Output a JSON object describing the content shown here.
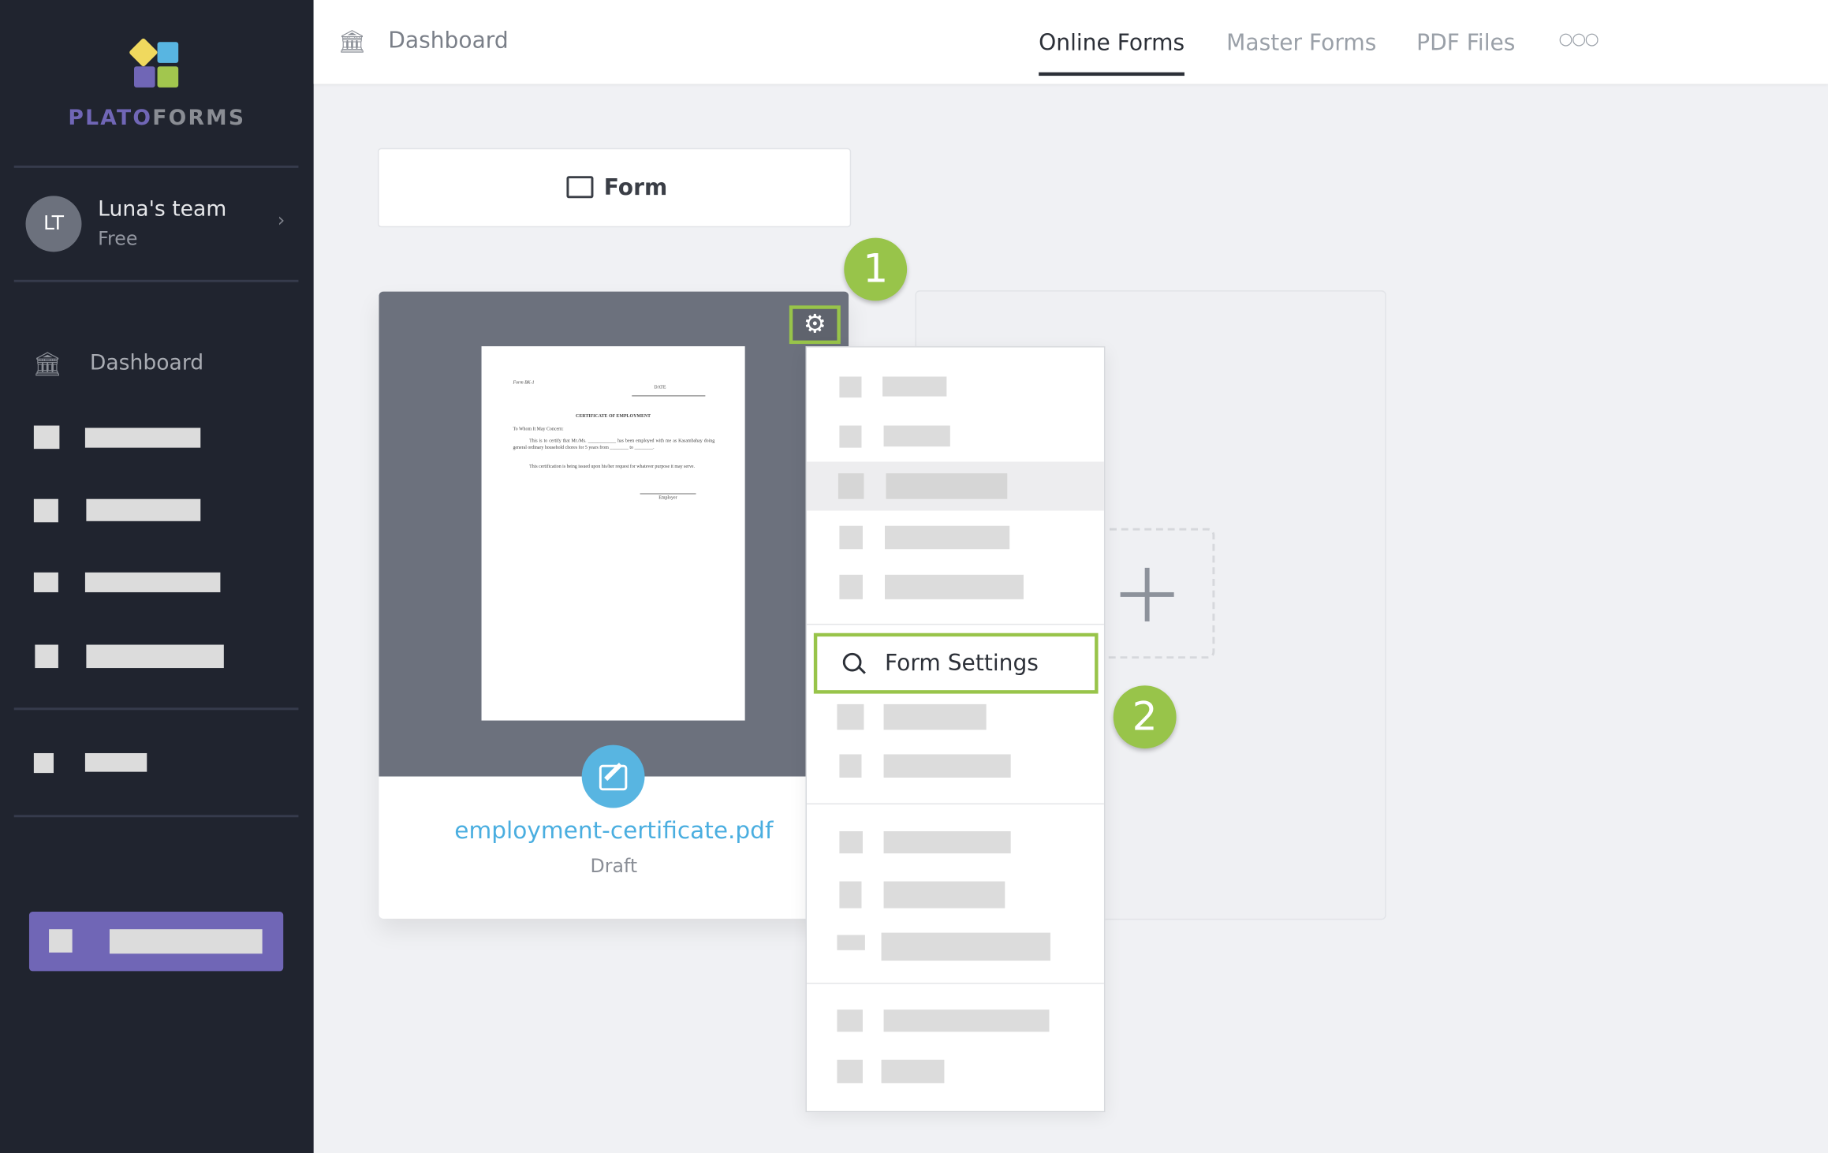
{
  "brand": {
    "name_part1": "PLATO",
    "name_part2": "FORMS",
    "colors": {
      "yellow": "#f0d95e",
      "blue": "#58b5e1",
      "purple": "#7066b6",
      "green": "#a2c64e"
    }
  },
  "team": {
    "initials": "LT",
    "name": "Luna's team",
    "plan": "Free"
  },
  "sidebar": {
    "dashboard_label": "Dashboard"
  },
  "header": {
    "breadcrumb": "Dashboard",
    "tabs": [
      {
        "label": "Online Forms",
        "active": true
      },
      {
        "label": "Master Forms"
      },
      {
        "label": "PDF Files"
      }
    ],
    "more_icon": "more-dots-icon"
  },
  "folder": {
    "label": "Form"
  },
  "form_card": {
    "file_name": "employment-certificate.pdf",
    "status": "Draft"
  },
  "document": {
    "form_no": "Form BK-1",
    "date": "DATE",
    "title": "CERTIFICATE OF EMPLOYMENT",
    "salutation": "To Whom It May Concern:",
    "body1": "This is to certify that Mr./Ms. ____________ has been employed with me as Kasambahay doing general ordinary household chores for 5 years from ________ to ________.",
    "body2": "This certification is being issued upon his/her request for whatever purpose it may serve.",
    "signature": "Employer"
  },
  "menu": {
    "highlighted_item": "Form Settings"
  },
  "steps": [
    "1",
    "2"
  ],
  "accent": "#98c44a"
}
